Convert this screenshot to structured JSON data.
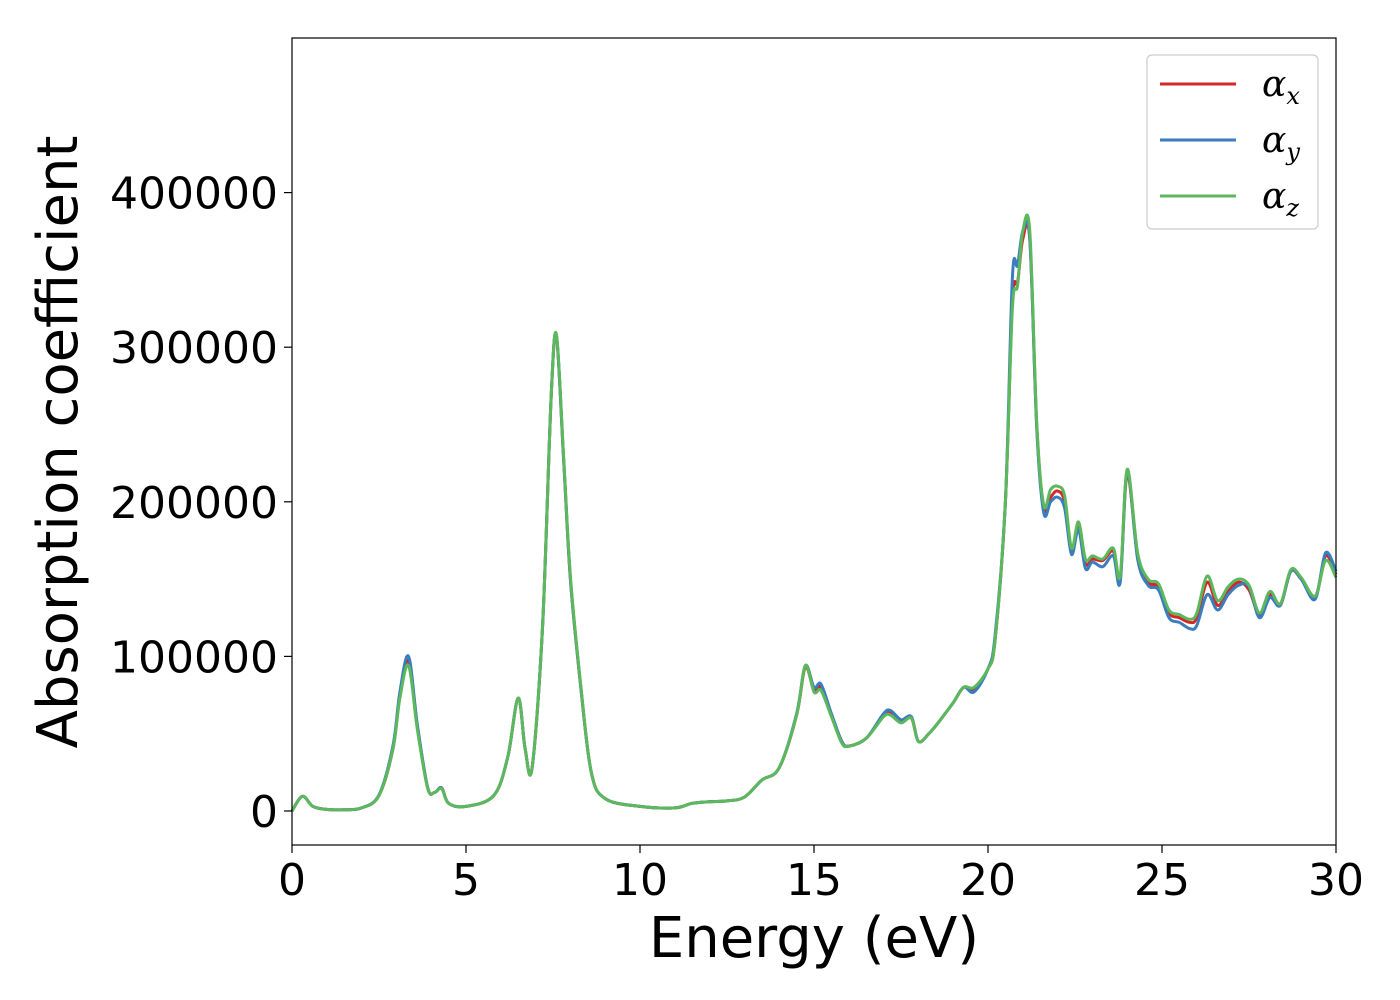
{
  "chart_data": {
    "type": "line",
    "title": "",
    "xlabel": "Energy (eV)",
    "ylabel": "Absorption coefficient",
    "xlim": [
      0,
      30
    ],
    "ylim": [
      -22000,
      500000
    ],
    "xticks": [
      0,
      5,
      10,
      15,
      20,
      25,
      30
    ],
    "xtick_labels": [
      "0",
      "5",
      "10",
      "15",
      "20",
      "25",
      "30"
    ],
    "yticks": [
      0,
      100000,
      200000,
      300000,
      400000
    ],
    "ytick_labels": [
      "0",
      "100000",
      "200000",
      "300000",
      "400000"
    ],
    "grid": false,
    "legend": {
      "placement": "top-right",
      "entries": [
        {
          "series": 0,
          "symbol": "α",
          "subscript": "x"
        },
        {
          "series": 1,
          "symbol": "α",
          "subscript": "y"
        },
        {
          "series": 2,
          "symbol": "α",
          "subscript": "z"
        }
      ]
    },
    "x": [
      0.0,
      0.3,
      0.6,
      1.0,
      1.5,
      2.0,
      2.5,
      2.9,
      3.1,
      3.35,
      3.6,
      3.9,
      4.1,
      4.3,
      4.5,
      5.0,
      5.8,
      6.2,
      6.5,
      6.7,
      6.9,
      7.2,
      7.45,
      7.6,
      7.8,
      8.0,
      8.3,
      8.6,
      9.0,
      10.0,
      11.0,
      11.5,
      12.0,
      12.5,
      13.0,
      13.5,
      14.0,
      14.5,
      14.75,
      15.0,
      15.2,
      15.5,
      15.8,
      16.0,
      16.5,
      17.0,
      17.2,
      17.5,
      17.8,
      18.0,
      18.3,
      18.6,
      19.0,
      19.3,
      19.6,
      20.0,
      20.2,
      20.5,
      20.7,
      20.85,
      21.0,
      21.2,
      21.4,
      21.6,
      21.8,
      22.0,
      22.2,
      22.4,
      22.6,
      22.8,
      23.0,
      23.3,
      23.6,
      23.8,
      24.0,
      24.3,
      24.6,
      24.9,
      25.2,
      25.5,
      25.8,
      26.0,
      26.3,
      26.6,
      26.9,
      27.2,
      27.5,
      27.8,
      28.1,
      28.4,
      28.7,
      29.0,
      29.4,
      29.7,
      30.0
    ],
    "series": [
      {
        "color": "#d62728",
        "values": [
          0,
          9500,
          3000,
          1000,
          800,
          2000,
          10000,
          40000,
          75000,
          97000,
          55000,
          15000,
          12000,
          15000,
          5000,
          3000,
          10000,
          35000,
          73000,
          40000,
          28000,
          120000,
          270000,
          307000,
          230000,
          150000,
          80000,
          25000,
          8000,
          3000,
          2000,
          5000,
          6000,
          6500,
          9000,
          20000,
          28000,
          62000,
          93000,
          78000,
          80000,
          62000,
          45000,
          42000,
          47000,
          62000,
          64000,
          58000,
          60000,
          45000,
          50000,
          58000,
          70000,
          80000,
          78000,
          92000,
          110000,
          200000,
          330000,
          342000,
          370000,
          370000,
          250000,
          195000,
          203000,
          207000,
          200000,
          168000,
          185000,
          160000,
          163000,
          162000,
          168000,
          150000,
          218000,
          165000,
          148000,
          145000,
          128000,
          125000,
          122000,
          125000,
          148000,
          133000,
          142000,
          148000,
          143000,
          127000,
          140000,
          133000,
          155000,
          150000,
          138000,
          165000,
          153000
        ]
      },
      {
        "color": "#3a7ebf",
        "values": [
          0,
          9500,
          3000,
          1000,
          800,
          2000,
          10500,
          42000,
          77000,
          100000,
          56000,
          15000,
          12000,
          15000,
          5000,
          3000,
          10000,
          35000,
          73000,
          40000,
          28000,
          120000,
          270000,
          307000,
          230000,
          150000,
          80000,
          25000,
          8000,
          3000,
          2000,
          5000,
          6000,
          6500,
          9000,
          20000,
          28000,
          63000,
          94000,
          80000,
          82000,
          63000,
          45000,
          42000,
          47000,
          63000,
          65000,
          59000,
          61000,
          45000,
          50000,
          58000,
          70000,
          80000,
          77000,
          92000,
          113000,
          200000,
          345000,
          353000,
          375000,
          370000,
          248000,
          193000,
          200000,
          203000,
          196000,
          166000,
          182000,
          157000,
          161000,
          158000,
          165000,
          148000,
          220000,
          163000,
          146000,
          143000,
          125000,
          122000,
          118000,
          120000,
          140000,
          130000,
          140000,
          146000,
          145000,
          125000,
          138000,
          133000,
          155000,
          150000,
          137000,
          167000,
          155000
        ]
      },
      {
        "color": "#5cb85c",
        "values": [
          0,
          9500,
          3000,
          1000,
          800,
          2000,
          10000,
          40000,
          73000,
          94000,
          53000,
          14500,
          12000,
          14500,
          5000,
          3000,
          10000,
          35000,
          73000,
          40000,
          28000,
          120000,
          270000,
          308000,
          232000,
          152000,
          81000,
          25000,
          8000,
          3000,
          2000,
          5000,
          6000,
          6500,
          9000,
          20000,
          28000,
          62000,
          94000,
          77000,
          78000,
          61000,
          44000,
          42000,
          47000,
          61000,
          62000,
          57000,
          60000,
          45000,
          50000,
          58000,
          70000,
          80000,
          80000,
          92000,
          110000,
          200000,
          325000,
          340000,
          375000,
          375000,
          252000,
          198000,
          208000,
          210000,
          204000,
          170000,
          187000,
          163000,
          165000,
          163000,
          170000,
          152000,
          221000,
          167000,
          150000,
          147000,
          130000,
          127000,
          124000,
          128000,
          152000,
          136000,
          145000,
          150000,
          146000,
          128000,
          142000,
          134000,
          156000,
          151000,
          139000,
          162000,
          151000
        ]
      }
    ]
  }
}
